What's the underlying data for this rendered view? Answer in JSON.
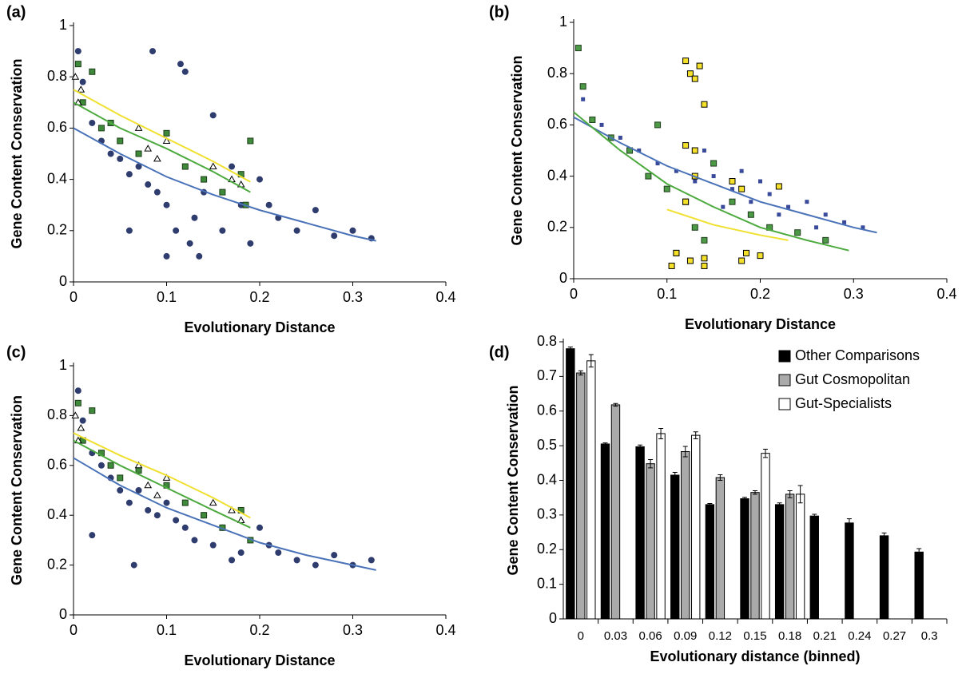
{
  "chart_data": [
    {
      "type": "scatter",
      "panel_label": "(a)",
      "xlabel": "Evolutionary Distance",
      "ylabel": "Gene Content Conservation",
      "xlim": [
        0,
        0.4
      ],
      "ylim": [
        0,
        1
      ],
      "xticks": [
        0,
        0.1,
        0.2,
        0.3,
        0.4
      ],
      "yticks": [
        0,
        0.2,
        0.4,
        0.6,
        0.8,
        1
      ],
      "series": [
        {
          "marker": "circle",
          "color": "#2e3c6e",
          "edge": "#2e3c6e",
          "x": [
            0.005,
            0.01,
            0.02,
            0.03,
            0.04,
            0.05,
            0.06,
            0.07,
            0.08,
            0.09,
            0.1,
            0.11,
            0.115,
            0.12,
            0.125,
            0.13,
            0.135,
            0.14,
            0.15,
            0.16,
            0.17,
            0.18,
            0.19,
            0.2,
            0.21,
            0.22,
            0.24,
            0.26,
            0.28,
            0.3,
            0.32,
            0.085,
            0.06,
            0.1
          ],
          "y": [
            0.9,
            0.78,
            0.62,
            0.55,
            0.5,
            0.48,
            0.42,
            0.45,
            0.38,
            0.35,
            0.3,
            0.2,
            0.85,
            0.82,
            0.15,
            0.25,
            0.1,
            0.35,
            0.65,
            0.2,
            0.45,
            0.3,
            0.15,
            0.4,
            0.3,
            0.25,
            0.2,
            0.28,
            0.18,
            0.2,
            0.17,
            0.9,
            0.2,
            0.1
          ]
        },
        {
          "marker": "square",
          "color": "#3f8a3a",
          "edge": "#1d3d1a",
          "x": [
            0.005,
            0.01,
            0.02,
            0.03,
            0.04,
            0.05,
            0.07,
            0.1,
            0.12,
            0.14,
            0.16,
            0.18,
            0.19,
            0.185
          ],
          "y": [
            0.85,
            0.7,
            0.82,
            0.6,
            0.62,
            0.55,
            0.5,
            0.58,
            0.45,
            0.4,
            0.35,
            0.42,
            0.55,
            0.3
          ]
        },
        {
          "marker": "triangle",
          "color": "#ffffff",
          "edge": "#000000",
          "x": [
            0.002,
            0.005,
            0.008,
            0.07,
            0.08,
            0.09,
            0.1,
            0.15,
            0.17,
            0.18
          ],
          "y": [
            0.8,
            0.7,
            0.75,
            0.6,
            0.52,
            0.48,
            0.55,
            0.45,
            0.4,
            0.38
          ]
        }
      ],
      "fits": [
        {
          "color": "#4a72b8",
          "x": [
            0,
            0.05,
            0.1,
            0.15,
            0.2,
            0.25,
            0.3,
            0.325
          ],
          "y": [
            0.6,
            0.5,
            0.41,
            0.34,
            0.28,
            0.23,
            0.18,
            0.16
          ]
        },
        {
          "color": "#4daa3e",
          "x": [
            0,
            0.05,
            0.1,
            0.15,
            0.19
          ],
          "y": [
            0.7,
            0.6,
            0.52,
            0.43,
            0.35
          ]
        },
        {
          "color": "#f0e030",
          "x": [
            0,
            0.05,
            0.1,
            0.15,
            0.19
          ],
          "y": [
            0.75,
            0.65,
            0.56,
            0.47,
            0.39
          ]
        }
      ]
    },
    {
      "type": "scatter",
      "panel_label": "(b)",
      "xlabel": "Evolutionary Distance",
      "ylabel": "Gene Content Conservation",
      "xlim": [
        0,
        0.4
      ],
      "ylim": [
        0,
        1
      ],
      "xticks": [
        0,
        0.1,
        0.2,
        0.3,
        0.4
      ],
      "yticks": [
        0,
        0.2,
        0.4,
        0.6,
        0.8,
        1
      ],
      "series": [
        {
          "marker": "smallsquare",
          "color": "#3a4a9a",
          "edge": "#3a4a9a",
          "x": [
            0.01,
            0.03,
            0.05,
            0.07,
            0.09,
            0.11,
            0.13,
            0.15,
            0.17,
            0.19,
            0.21,
            0.23,
            0.25,
            0.27,
            0.29,
            0.31,
            0.14,
            0.16,
            0.2,
            0.12,
            0.18,
            0.22,
            0.26
          ],
          "y": [
            0.7,
            0.6,
            0.55,
            0.5,
            0.45,
            0.42,
            0.38,
            0.4,
            0.35,
            0.3,
            0.33,
            0.28,
            0.3,
            0.25,
            0.22,
            0.2,
            0.5,
            0.28,
            0.38,
            0.3,
            0.42,
            0.25,
            0.2
          ]
        },
        {
          "marker": "square",
          "color": "#4d9a46",
          "edge": "#1d3d1a",
          "x": [
            0.005,
            0.01,
            0.02,
            0.04,
            0.06,
            0.08,
            0.1,
            0.12,
            0.13,
            0.14,
            0.15,
            0.17,
            0.19,
            0.21,
            0.24,
            0.27,
            0.09,
            0.11
          ],
          "y": [
            0.9,
            0.75,
            0.62,
            0.55,
            0.5,
            0.4,
            0.35,
            0.3,
            0.2,
            0.15,
            0.45,
            0.3,
            0.25,
            0.2,
            0.18,
            0.15,
            0.6,
            0.1
          ]
        },
        {
          "marker": "square",
          "color": "#f5e02a",
          "edge": "#000000",
          "x": [
            0.12,
            0.125,
            0.13,
            0.135,
            0.14,
            0.12,
            0.13,
            0.11,
            0.125,
            0.14,
            0.17,
            0.18,
            0.185,
            0.2,
            0.22,
            0.12,
            0.13,
            0.14,
            0.18,
            0.105
          ],
          "y": [
            0.85,
            0.8,
            0.78,
            0.83,
            0.68,
            0.52,
            0.5,
            0.1,
            0.07,
            0.08,
            0.38,
            0.35,
            0.1,
            0.09,
            0.36,
            0.3,
            0.4,
            0.05,
            0.07,
            0.05
          ]
        }
      ],
      "fits": [
        {
          "color": "#4a72b8",
          "x": [
            0,
            0.05,
            0.1,
            0.15,
            0.2,
            0.25,
            0.3,
            0.325
          ],
          "y": [
            0.63,
            0.53,
            0.44,
            0.37,
            0.3,
            0.25,
            0.2,
            0.18
          ]
        },
        {
          "color": "#4daa3e",
          "x": [
            0,
            0.05,
            0.1,
            0.15,
            0.2,
            0.25,
            0.295
          ],
          "y": [
            0.65,
            0.5,
            0.37,
            0.28,
            0.2,
            0.15,
            0.11
          ]
        },
        {
          "color": "#f0e030",
          "x": [
            0.1,
            0.15,
            0.2,
            0.23
          ],
          "y": [
            0.27,
            0.21,
            0.17,
            0.15
          ]
        }
      ]
    },
    {
      "type": "scatter",
      "panel_label": "(c)",
      "xlabel": "Evolutionary Distance",
      "ylabel": "Gene Content Conservation",
      "xlim": [
        0,
        0.4
      ],
      "ylim": [
        0,
        1
      ],
      "xticks": [
        0,
        0.1,
        0.2,
        0.3,
        0.4
      ],
      "yticks": [
        0,
        0.2,
        0.4,
        0.6,
        0.8,
        1
      ],
      "series": [
        {
          "marker": "circle",
          "color": "#2e3c6e",
          "edge": "#2e3c6e",
          "x": [
            0.005,
            0.01,
            0.02,
            0.03,
            0.04,
            0.05,
            0.06,
            0.07,
            0.08,
            0.09,
            0.1,
            0.11,
            0.12,
            0.13,
            0.14,
            0.15,
            0.16,
            0.17,
            0.18,
            0.19,
            0.2,
            0.21,
            0.22,
            0.24,
            0.26,
            0.28,
            0.3,
            0.32,
            0.02,
            0.065
          ],
          "y": [
            0.9,
            0.78,
            0.65,
            0.6,
            0.55,
            0.5,
            0.45,
            0.5,
            0.42,
            0.4,
            0.45,
            0.38,
            0.35,
            0.3,
            0.4,
            0.28,
            0.35,
            0.22,
            0.25,
            0.3,
            0.35,
            0.28,
            0.25,
            0.22,
            0.2,
            0.24,
            0.2,
            0.22,
            0.32,
            0.2
          ]
        },
        {
          "marker": "square",
          "color": "#3f8a3a",
          "edge": "#1d3d1a",
          "x": [
            0.005,
            0.01,
            0.02,
            0.03,
            0.04,
            0.05,
            0.07,
            0.1,
            0.12,
            0.14,
            0.16,
            0.18,
            0.19
          ],
          "y": [
            0.85,
            0.7,
            0.82,
            0.65,
            0.6,
            0.55,
            0.58,
            0.52,
            0.45,
            0.4,
            0.35,
            0.42,
            0.3
          ]
        },
        {
          "marker": "triangle",
          "color": "#ffffff",
          "edge": "#000000",
          "x": [
            0.002,
            0.005,
            0.008,
            0.07,
            0.08,
            0.09,
            0.1,
            0.15,
            0.17,
            0.18
          ],
          "y": [
            0.8,
            0.7,
            0.75,
            0.6,
            0.52,
            0.48,
            0.55,
            0.45,
            0.42,
            0.38
          ]
        }
      ],
      "fits": [
        {
          "color": "#4a72b8",
          "x": [
            0,
            0.05,
            0.1,
            0.15,
            0.2,
            0.25,
            0.3,
            0.325
          ],
          "y": [
            0.63,
            0.52,
            0.43,
            0.36,
            0.29,
            0.24,
            0.2,
            0.18
          ]
        },
        {
          "color": "#4daa3e",
          "x": [
            0,
            0.05,
            0.1,
            0.15,
            0.19
          ],
          "y": [
            0.7,
            0.6,
            0.51,
            0.42,
            0.35
          ]
        },
        {
          "color": "#f0e030",
          "x": [
            0,
            0.05,
            0.1,
            0.15,
            0.19
          ],
          "y": [
            0.73,
            0.64,
            0.56,
            0.47,
            0.39
          ]
        }
      ]
    },
    {
      "type": "bar",
      "panel_label": "(d)",
      "xlabel": "Evolutionary distance (binned)",
      "ylabel": "Gene Content Conservation",
      "categories": [
        "0",
        "0.03",
        "0.06",
        "0.09",
        "0.12",
        "0.15",
        "0.18",
        "0.21",
        "0.24",
        "0.27",
        "0.3"
      ],
      "ylim": [
        0,
        0.8
      ],
      "yticks": [
        0,
        0.1,
        0.2,
        0.3,
        0.4,
        0.5,
        0.6,
        0.7,
        0.8
      ],
      "legend": "upper right",
      "series": [
        {
          "name": "Other Comparisons",
          "color": "#000000",
          "values": [
            0.78,
            0.505,
            0.497,
            0.415,
            0.33,
            0.347,
            0.33,
            0.297,
            0.277,
            0.24,
            0.193
          ],
          "errors": [
            0.005,
            0.003,
            0.005,
            0.008,
            0.003,
            0.004,
            0.005,
            0.005,
            0.012,
            0.008,
            0.01
          ]
        },
        {
          "name": "Gut Cosmopolitan",
          "color": "#aaaaaa",
          "values": [
            0.71,
            0.618,
            0.448,
            0.483,
            0.408,
            0.365,
            0.36,
            null,
            null,
            null,
            null
          ],
          "errors": [
            0.006,
            0.004,
            0.012,
            0.015,
            0.008,
            0.005,
            0.01,
            null,
            null,
            null,
            null
          ]
        },
        {
          "name": "Gut-Specialists",
          "color": "#ffffff",
          "values": [
            0.745,
            null,
            0.535,
            0.53,
            null,
            0.478,
            0.36,
            null,
            null,
            null,
            null
          ],
          "errors": [
            0.018,
            null,
            0.015,
            0.01,
            null,
            0.012,
            0.025,
            null,
            null,
            null,
            null
          ]
        }
      ]
    }
  ]
}
